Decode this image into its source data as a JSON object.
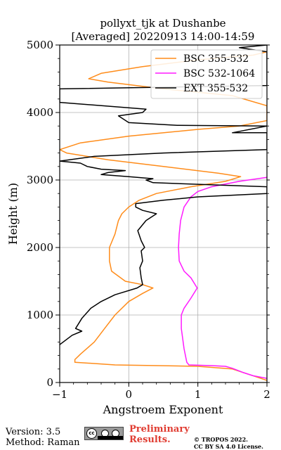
{
  "chart_data": {
    "type": "line",
    "title_line1": "pollyxt_tjk at Dushanbe",
    "title_line2": "[Averaged] 20220913 14:00-14:59",
    "xlabel": "Angstroem Exponent",
    "ylabel": "Height (m)",
    "xlim": [
      -1,
      2
    ],
    "ylim": [
      0,
      5000
    ],
    "xticks": [
      -1,
      0,
      1,
      2
    ],
    "xtick_labels": [
      "−1",
      "0",
      "1",
      "2"
    ],
    "yticks": [
      0,
      1000,
      2000,
      3000,
      4000,
      5000
    ],
    "ytick_labels": [
      "0",
      "1000",
      "2000",
      "3000",
      "4000",
      "5000"
    ],
    "grid": true,
    "legend_position": "top-right",
    "series": [
      {
        "name": "BSC 355-532",
        "color": "#ff8c1a",
        "points": [
          [
            2.0,
            30
          ],
          [
            1.8,
            100
          ],
          [
            1.5,
            200
          ],
          [
            1.0,
            240
          ],
          [
            -0.2,
            260
          ],
          [
            -0.78,
            300
          ],
          [
            -0.78,
            340
          ],
          [
            -0.7,
            420
          ],
          [
            -0.5,
            600
          ],
          [
            -0.35,
            800
          ],
          [
            -0.2,
            1000
          ],
          [
            0.0,
            1200
          ],
          [
            0.2,
            1320
          ],
          [
            0.35,
            1400
          ],
          [
            0.2,
            1450
          ],
          [
            -0.05,
            1500
          ],
          [
            -0.25,
            1650
          ],
          [
            -0.28,
            1800
          ],
          [
            -0.28,
            2000
          ],
          [
            -0.2,
            2200
          ],
          [
            -0.15,
            2400
          ],
          [
            -0.1,
            2500
          ],
          [
            0.0,
            2600
          ],
          [
            0.15,
            2700
          ],
          [
            0.4,
            2800
          ],
          [
            0.9,
            2900
          ],
          [
            1.4,
            2980
          ],
          [
            1.62,
            3050
          ],
          [
            1.3,
            3100
          ],
          [
            0.5,
            3200
          ],
          [
            -0.3,
            3300
          ],
          [
            -0.9,
            3400
          ],
          [
            -1.0,
            3450
          ],
          [
            -0.7,
            3550
          ],
          [
            0.0,
            3650
          ],
          [
            1.0,
            3750
          ],
          [
            1.6,
            3800
          ],
          [
            2.0,
            3880
          ],
          [
            2.0,
            4100
          ],
          [
            1.5,
            4250
          ],
          [
            0.5,
            4350
          ],
          [
            -0.3,
            4450
          ],
          [
            -0.58,
            4500
          ],
          [
            -0.4,
            4580
          ],
          [
            0.2,
            4680
          ],
          [
            1.0,
            4780
          ],
          [
            1.8,
            4850
          ],
          [
            2.0,
            4900
          ]
        ]
      },
      {
        "name": "BSC 532-1064",
        "color": "#ff1aff",
        "points": [
          [
            2.0,
            60
          ],
          [
            1.8,
            100
          ],
          [
            1.65,
            150
          ],
          [
            1.5,
            210
          ],
          [
            1.4,
            240
          ],
          [
            1.2,
            250
          ],
          [
            0.87,
            260
          ],
          [
            0.84,
            300
          ],
          [
            0.8,
            500
          ],
          [
            0.76,
            800
          ],
          [
            0.76,
            1000
          ],
          [
            0.8,
            1100
          ],
          [
            0.9,
            1250
          ],
          [
            0.99,
            1400
          ],
          [
            0.9,
            1550
          ],
          [
            0.8,
            1650
          ],
          [
            0.73,
            1800
          ],
          [
            0.72,
            2000
          ],
          [
            0.73,
            2200
          ],
          [
            0.75,
            2400
          ],
          [
            0.8,
            2600
          ],
          [
            0.9,
            2750
          ],
          [
            1.0,
            2830
          ],
          [
            1.2,
            2900
          ],
          [
            1.6,
            2980
          ],
          [
            2.0,
            3040
          ]
        ]
      },
      {
        "name": "EXT 355-532",
        "color": "#000000",
        "points": [
          [
            -1.0,
            560
          ],
          [
            -0.82,
            700
          ],
          [
            -0.68,
            760
          ],
          [
            -0.77,
            800
          ],
          [
            -0.68,
            950
          ],
          [
            -0.55,
            1100
          ],
          [
            -0.4,
            1200
          ],
          [
            -0.2,
            1300
          ],
          [
            0.12,
            1400
          ],
          [
            0.2,
            1450
          ],
          [
            0.18,
            1550
          ],
          [
            0.16,
            1700
          ],
          [
            0.2,
            1800
          ],
          [
            0.18,
            1950
          ],
          [
            0.23,
            2000
          ],
          [
            0.18,
            2100
          ],
          [
            0.13,
            2250
          ],
          [
            0.25,
            2400
          ],
          [
            0.4,
            2500
          ],
          [
            0.2,
            2550
          ],
          [
            0.1,
            2600
          ],
          [
            0.1,
            2650
          ],
          [
            0.5,
            2700
          ],
          [
            1.0,
            2750
          ],
          [
            2.0,
            2800
          ],
          [
            2.0,
            2900
          ],
          [
            0.35,
            2960
          ],
          [
            0.25,
            3000
          ],
          [
            0.35,
            3020
          ],
          [
            0.0,
            3050
          ],
          [
            -0.4,
            3080
          ],
          [
            -0.3,
            3110
          ],
          [
            -0.05,
            3140
          ],
          [
            -0.4,
            3160
          ],
          [
            -0.6,
            3200
          ],
          [
            -0.7,
            3250
          ],
          [
            -1.0,
            3280
          ],
          [
            -0.5,
            3350
          ],
          [
            0.5,
            3400
          ],
          [
            2.0,
            3450
          ],
          [
            2.0,
            3700
          ],
          [
            1.5,
            3700
          ],
          [
            2.0,
            3800
          ],
          [
            0.7,
            3810
          ],
          [
            0.0,
            3850
          ],
          [
            -0.15,
            3950
          ],
          [
            0.2,
            4000
          ],
          [
            0.25,
            4050
          ],
          [
            -1.0,
            4150
          ],
          [
            -1.0,
            4350
          ],
          [
            2.0,
            4400
          ],
          [
            2.0,
            4900
          ],
          [
            1.6,
            4960
          ],
          [
            2.0,
            5000
          ]
        ]
      }
    ]
  },
  "footer": {
    "version": "Version: 3.5",
    "method": "Method: Raman",
    "license_badge": "cc by sa",
    "preliminary_line1": "Preliminary",
    "preliminary_line2": "Results.",
    "copyright_line1": "© TROPOS 2022.",
    "copyright_line2": "CC BY SA 4.0 License."
  }
}
